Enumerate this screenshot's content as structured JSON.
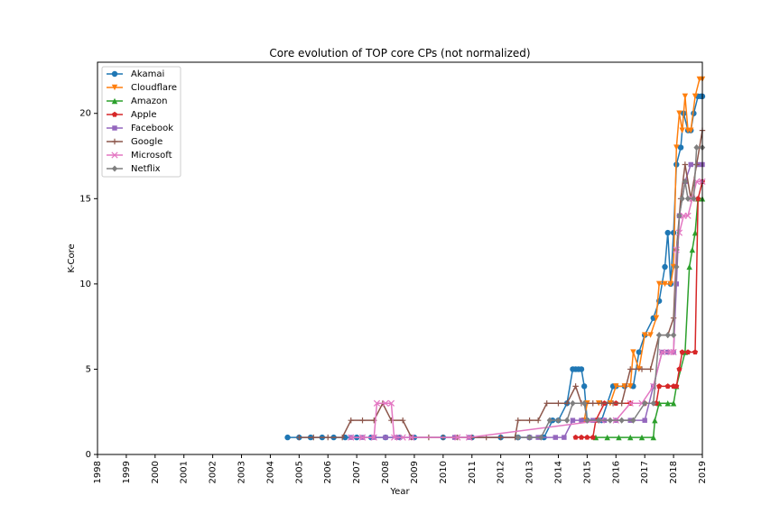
{
  "chart_data": {
    "type": "line",
    "title": "Core evolution of TOP core CPs (not normalized)",
    "xlabel": "Year",
    "ylabel": "K-Core",
    "xlim": [
      1998,
      2019
    ],
    "ylim": [
      0,
      23
    ],
    "xticks": [
      "1998",
      "1999",
      "2000",
      "2001",
      "2002",
      "2003",
      "2004",
      "2005",
      "2006",
      "2007",
      "2008",
      "2009",
      "2010",
      "2011",
      "2012",
      "2013",
      "2014",
      "2015",
      "2016",
      "2017",
      "2018",
      "2019"
    ],
    "yticks": [
      0,
      5,
      10,
      15,
      20
    ],
    "grid": false,
    "legend_position": "upper-left",
    "series": [
      {
        "name": "Akamai",
        "color": "#1f77b4",
        "marker": "circle",
        "points": [
          [
            2004.6,
            1
          ],
          [
            2005.0,
            1
          ],
          [
            2005.4,
            1
          ],
          [
            2005.8,
            1
          ],
          [
            2006.2,
            1
          ],
          [
            2006.6,
            1
          ],
          [
            2007.0,
            1
          ],
          [
            2007.5,
            1
          ],
          [
            2008.0,
            1
          ],
          [
            2008.5,
            1
          ],
          [
            2009.0,
            1
          ],
          [
            2010.0,
            1
          ],
          [
            2011.0,
            1
          ],
          [
            2012.0,
            1
          ],
          [
            2012.6,
            1
          ],
          [
            2013.0,
            1
          ],
          [
            2013.5,
            1
          ],
          [
            2013.8,
            2
          ],
          [
            2014.0,
            2
          ],
          [
            2014.3,
            3
          ],
          [
            2014.5,
            5
          ],
          [
            2014.6,
            5
          ],
          [
            2014.7,
            5
          ],
          [
            2014.8,
            5
          ],
          [
            2014.9,
            4
          ],
          [
            2015.0,
            2
          ],
          [
            2015.5,
            2
          ],
          [
            2015.9,
            4
          ],
          [
            2016.0,
            4
          ],
          [
            2016.3,
            4
          ],
          [
            2016.6,
            4
          ],
          [
            2016.8,
            6
          ],
          [
            2017.0,
            7
          ],
          [
            2017.3,
            8
          ],
          [
            2017.5,
            9
          ],
          [
            2017.7,
            11
          ],
          [
            2017.8,
            13
          ],
          [
            2017.9,
            10
          ],
          [
            2018.0,
            13
          ],
          [
            2018.1,
            17
          ],
          [
            2018.25,
            18
          ],
          [
            2018.35,
            20
          ],
          [
            2018.5,
            19
          ],
          [
            2018.6,
            19
          ],
          [
            2018.7,
            20
          ],
          [
            2018.85,
            21
          ],
          [
            2018.95,
            21
          ],
          [
            2019.0,
            21
          ]
        ]
      },
      {
        "name": "Cloudflare",
        "color": "#ff7f0e",
        "marker": "triangle-down",
        "points": [
          [
            2014.9,
            2
          ],
          [
            2015.0,
            3
          ],
          [
            2015.4,
            3
          ],
          [
            2015.8,
            3
          ],
          [
            2016.0,
            4
          ],
          [
            2016.3,
            4
          ],
          [
            2016.5,
            4
          ],
          [
            2016.6,
            6
          ],
          [
            2016.8,
            5
          ],
          [
            2017.0,
            7
          ],
          [
            2017.2,
            7
          ],
          [
            2017.4,
            8
          ],
          [
            2017.5,
            10
          ],
          [
            2017.7,
            10
          ],
          [
            2017.9,
            10
          ],
          [
            2018.0,
            11
          ],
          [
            2018.1,
            18
          ],
          [
            2018.2,
            20
          ],
          [
            2018.3,
            19
          ],
          [
            2018.4,
            21
          ],
          [
            2018.5,
            19
          ],
          [
            2018.6,
            19
          ],
          [
            2018.75,
            21
          ],
          [
            2018.9,
            22
          ],
          [
            2019.0,
            22
          ]
        ]
      },
      {
        "name": "Amazon",
        "color": "#2ca02c",
        "marker": "triangle-up",
        "points": [
          [
            2015.3,
            1
          ],
          [
            2015.7,
            1
          ],
          [
            2016.1,
            1
          ],
          [
            2016.5,
            1
          ],
          [
            2016.9,
            1
          ],
          [
            2017.3,
            1
          ],
          [
            2017.35,
            2
          ],
          [
            2017.5,
            3
          ],
          [
            2017.8,
            3
          ],
          [
            2018.0,
            3
          ],
          [
            2018.1,
            4
          ],
          [
            2018.4,
            6
          ],
          [
            2018.55,
            11
          ],
          [
            2018.65,
            12
          ],
          [
            2018.75,
            13
          ],
          [
            2018.85,
            15
          ],
          [
            2019.0,
            15
          ]
        ]
      },
      {
        "name": "Apple",
        "color": "#d62728",
        "marker": "pentagon",
        "points": [
          [
            2014.6,
            1
          ],
          [
            2014.8,
            1
          ],
          [
            2015.0,
            1
          ],
          [
            2015.2,
            1
          ],
          [
            2015.3,
            2
          ],
          [
            2015.6,
            3
          ],
          [
            2016.0,
            3
          ],
          [
            2016.5,
            3
          ],
          [
            2017.0,
            3
          ],
          [
            2017.4,
            3
          ],
          [
            2017.5,
            4
          ],
          [
            2017.8,
            4
          ],
          [
            2018.0,
            4
          ],
          [
            2018.1,
            4
          ],
          [
            2018.2,
            5
          ],
          [
            2018.3,
            6
          ],
          [
            2018.5,
            6
          ],
          [
            2018.75,
            6
          ],
          [
            2018.85,
            15
          ],
          [
            2019.0,
            16
          ]
        ]
      },
      {
        "name": "Facebook",
        "color": "#9467bd",
        "marker": "square",
        "points": [
          [
            2006.8,
            1
          ],
          [
            2007.2,
            1
          ],
          [
            2007.6,
            1
          ],
          [
            2008.0,
            1
          ],
          [
            2008.4,
            1
          ],
          [
            2008.9,
            1
          ],
          [
            2010.4,
            1
          ],
          [
            2010.9,
            1
          ],
          [
            2013.0,
            1
          ],
          [
            2013.3,
            1
          ],
          [
            2013.9,
            1
          ],
          [
            2014.2,
            1
          ],
          [
            2014.5,
            2
          ],
          [
            2014.8,
            2
          ],
          [
            2015.2,
            2
          ],
          [
            2015.6,
            2
          ],
          [
            2016.0,
            2
          ],
          [
            2016.5,
            2
          ],
          [
            2017.0,
            2
          ],
          [
            2017.3,
            4
          ],
          [
            2017.6,
            6
          ],
          [
            2017.8,
            6
          ],
          [
            2018.0,
            6
          ],
          [
            2018.1,
            10
          ],
          [
            2018.2,
            14
          ],
          [
            2018.4,
            16
          ],
          [
            2018.6,
            17
          ],
          [
            2018.85,
            17
          ],
          [
            2019.0,
            17
          ]
        ]
      },
      {
        "name": "Google",
        "color": "#8c564b",
        "marker": "plus",
        "points": [
          [
            2005.0,
            1
          ],
          [
            2005.5,
            1
          ],
          [
            2006.0,
            1
          ],
          [
            2006.5,
            1
          ],
          [
            2006.8,
            2
          ],
          [
            2007.2,
            2
          ],
          [
            2007.6,
            2
          ],
          [
            2007.9,
            3
          ],
          [
            2008.2,
            2
          ],
          [
            2008.6,
            2
          ],
          [
            2008.9,
            1
          ],
          [
            2009.5,
            1
          ],
          [
            2010.0,
            1
          ],
          [
            2010.5,
            1
          ],
          [
            2011.0,
            1
          ],
          [
            2011.5,
            1
          ],
          [
            2012.0,
            1
          ],
          [
            2012.5,
            1
          ],
          [
            2012.6,
            2
          ],
          [
            2013.0,
            2
          ],
          [
            2013.3,
            2
          ],
          [
            2013.6,
            3
          ],
          [
            2014.0,
            3
          ],
          [
            2014.3,
            3
          ],
          [
            2014.6,
            4
          ],
          [
            2014.8,
            3
          ],
          [
            2015.2,
            3
          ],
          [
            2015.5,
            3
          ],
          [
            2015.9,
            3
          ],
          [
            2016.2,
            3
          ],
          [
            2016.5,
            5
          ],
          [
            2016.9,
            5
          ],
          [
            2017.2,
            5
          ],
          [
            2017.5,
            7
          ],
          [
            2017.8,
            7
          ],
          [
            2018.0,
            8
          ],
          [
            2018.1,
            12
          ],
          [
            2018.25,
            15
          ],
          [
            2018.4,
            17
          ],
          [
            2018.6,
            15
          ],
          [
            2018.8,
            17
          ],
          [
            2019.0,
            19
          ]
        ]
      },
      {
        "name": "Microsoft",
        "color": "#e377c2",
        "marker": "x",
        "points": [
          [
            2006.8,
            1
          ],
          [
            2007.2,
            1
          ],
          [
            2007.6,
            1
          ],
          [
            2007.7,
            3
          ],
          [
            2008.0,
            3
          ],
          [
            2008.2,
            3
          ],
          [
            2008.3,
            1
          ],
          [
            2008.6,
            1
          ],
          [
            2008.9,
            1
          ],
          [
            2010.5,
            1
          ],
          [
            2010.9,
            1
          ],
          [
            2015.5,
            2
          ],
          [
            2016.0,
            2
          ],
          [
            2016.5,
            3
          ],
          [
            2016.9,
            3
          ],
          [
            2017.3,
            4
          ],
          [
            2017.6,
            6
          ],
          [
            2017.9,
            6
          ],
          [
            2018.0,
            6
          ],
          [
            2018.1,
            12
          ],
          [
            2018.2,
            13
          ],
          [
            2018.35,
            14
          ],
          [
            2018.5,
            14
          ],
          [
            2018.65,
            15
          ],
          [
            2018.8,
            16
          ],
          [
            2019.0,
            16
          ]
        ]
      },
      {
        "name": "Netflix",
        "color": "#7f7f7f",
        "marker": "diamond",
        "points": [
          [
            2012.6,
            1
          ],
          [
            2013.0,
            1
          ],
          [
            2013.4,
            1
          ],
          [
            2013.7,
            2
          ],
          [
            2014.0,
            2
          ],
          [
            2014.3,
            2
          ],
          [
            2014.5,
            3
          ],
          [
            2014.9,
            3
          ],
          [
            2015.0,
            2
          ],
          [
            2015.4,
            2
          ],
          [
            2015.8,
            2
          ],
          [
            2016.2,
            2
          ],
          [
            2016.6,
            2
          ],
          [
            2017.0,
            3
          ],
          [
            2017.3,
            3
          ],
          [
            2017.5,
            7
          ],
          [
            2017.8,
            7
          ],
          [
            2018.0,
            7
          ],
          [
            2018.1,
            11
          ],
          [
            2018.2,
            14
          ],
          [
            2018.3,
            15
          ],
          [
            2018.4,
            16
          ],
          [
            2018.5,
            15
          ],
          [
            2018.7,
            15
          ],
          [
            2018.8,
            18
          ],
          [
            2019.0,
            18
          ]
        ]
      }
    ]
  }
}
